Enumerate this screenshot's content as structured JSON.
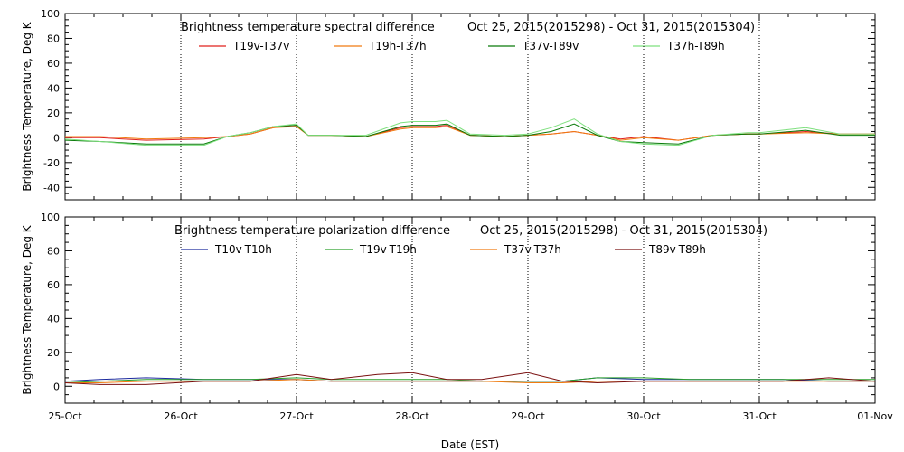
{
  "chart_data": [
    {
      "type": "line",
      "title_left": "Brightness temperature spectral difference",
      "title_right": "Oct 25, 2015(2015298) - Oct 31, 2015(2015304)",
      "ylabel": "Brightness Temperature, Deg K",
      "ylim": [
        -50,
        100
      ],
      "yticks": [
        "-40",
        "-20",
        "0",
        "20",
        "40",
        "60",
        "80",
        "100"
      ],
      "grid": "vertical dotted at day boundaries",
      "legend": "top",
      "series": [
        {
          "name": "T19v-T37v",
          "color": "#e0201c",
          "x": [
            0,
            0.3,
            0.7,
            1.2,
            1.4,
            1.6,
            1.8,
            2.0,
            2.1,
            2.3,
            2.6,
            2.9,
            3.0,
            3.2,
            3.3,
            3.5,
            3.8,
            4.0,
            4.2,
            4.4,
            4.6,
            4.8,
            5.0,
            5.3,
            5.6,
            5.9,
            6.0,
            6.4,
            6.7,
            7.0
          ],
          "y": [
            0,
            0,
            -2,
            -1,
            1,
            3,
            8,
            10,
            2,
            2,
            1,
            8,
            9,
            9,
            10,
            2,
            1,
            2,
            3,
            5,
            2,
            -1,
            1,
            -2,
            2,
            3,
            3,
            5,
            3,
            3
          ]
        },
        {
          "name": "T19h-T37h",
          "color": "#f07b10",
          "x": [
            0,
            0.3,
            0.7,
            1.2,
            1.4,
            1.6,
            1.8,
            2.0,
            2.1,
            2.3,
            2.6,
            2.9,
            3.0,
            3.2,
            3.3,
            3.5,
            3.8,
            4.0,
            4.2,
            4.4,
            4.6,
            4.8,
            5.0,
            5.3,
            5.6,
            5.9,
            6.0,
            6.4,
            6.7,
            7.0
          ],
          "y": [
            1,
            1,
            -1,
            0,
            1,
            3,
            8,
            9,
            2,
            2,
            1,
            7,
            8,
            8,
            9,
            2,
            1,
            2,
            3,
            5,
            2,
            -2,
            0,
            -2,
            2,
            3,
            3,
            4,
            3,
            3
          ]
        },
        {
          "name": "T37v-T89v",
          "color": "#0a7a0a",
          "x": [
            0,
            0.3,
            0.7,
            1.2,
            1.4,
            1.6,
            1.8,
            2.0,
            2.1,
            2.3,
            2.6,
            2.9,
            3.0,
            3.2,
            3.3,
            3.5,
            3.8,
            4.0,
            4.2,
            4.4,
            4.6,
            4.8,
            5.0,
            5.3,
            5.6,
            5.9,
            6.0,
            6.4,
            6.7,
            7.0
          ],
          "y": [
            -2,
            -3,
            -5,
            -5,
            1,
            4,
            9,
            10,
            2,
            2,
            1,
            9,
            10,
            10,
            11,
            2,
            1,
            2,
            5,
            11,
            2,
            -3,
            -4,
            -5,
            2,
            3,
            3,
            6,
            2,
            2
          ]
        },
        {
          "name": "T37h-T89h",
          "color": "#7ee07e",
          "x": [
            0,
            0.3,
            0.7,
            1.2,
            1.4,
            1.6,
            1.8,
            2.0,
            2.1,
            2.3,
            2.6,
            2.9,
            3.0,
            3.2,
            3.3,
            3.5,
            3.8,
            4.0,
            4.2,
            4.4,
            4.6,
            4.8,
            5.0,
            5.3,
            5.6,
            5.9,
            6.0,
            6.4,
            6.7,
            7.0
          ],
          "y": [
            -1,
            -3,
            -6,
            -6,
            1,
            4,
            9,
            11,
            2,
            2,
            2,
            12,
            13,
            13,
            14,
            3,
            2,
            3,
            8,
            15,
            3,
            -3,
            -5,
            -6,
            2,
            4,
            4,
            8,
            3,
            3
          ]
        }
      ]
    },
    {
      "type": "line",
      "title_left": "Brightness temperature polarization difference",
      "title_right": "Oct 25, 2015(2015298) - Oct 31, 2015(2015304)",
      "ylabel": "Brightness Temperature, Deg K",
      "xlabel": "Date (EST)",
      "ylim": [
        -10,
        100
      ],
      "yticks": [
        "0",
        "20",
        "40",
        "60",
        "80",
        "100"
      ],
      "xticks": [
        "25-Oct",
        "26-Oct",
        "27-Oct",
        "28-Oct",
        "29-Oct",
        "30-Oct",
        "31-Oct",
        "01-Nov"
      ],
      "grid": "vertical dotted at day boundaries",
      "legend": "top",
      "series": [
        {
          "name": "T10v-T10h",
          "color": "#1c2a9e",
          "x": [
            0,
            0.3,
            0.7,
            1.2,
            1.6,
            2.0,
            2.3,
            2.7,
            3.0,
            3.3,
            3.6,
            4.0,
            4.3,
            4.6,
            5.0,
            5.4,
            5.8,
            6.2,
            6.6,
            7.0
          ],
          "y": [
            3,
            4,
            5,
            4,
            4,
            4,
            3,
            3,
            3,
            3,
            3,
            3,
            3,
            5,
            4,
            4,
            4,
            4,
            3,
            3
          ]
        },
        {
          "name": "T19v-T19h",
          "color": "#2aa02a",
          "x": [
            0,
            0.3,
            0.7,
            1.2,
            1.6,
            2.0,
            2.3,
            2.7,
            3.0,
            3.3,
            3.6,
            4.0,
            4.3,
            4.6,
            5.0,
            5.4,
            5.8,
            6.2,
            6.6,
            7.0
          ],
          "y": [
            2,
            3,
            4,
            4,
            4,
            5,
            4,
            4,
            4,
            4,
            3,
            3,
            3,
            5,
            5,
            4,
            4,
            4,
            4,
            4
          ]
        },
        {
          "name": "T37v-T37h",
          "color": "#f07b10",
          "x": [
            0,
            0.3,
            0.7,
            1.2,
            1.6,
            2.0,
            2.3,
            2.7,
            3.0,
            3.3,
            3.6,
            4.0,
            4.3,
            4.6,
            5.0,
            5.4,
            5.8,
            6.2,
            6.6,
            7.0
          ],
          "y": [
            2,
            2,
            3,
            3,
            3,
            4,
            3,
            3,
            3,
            3,
            3,
            2,
            2,
            3,
            3,
            3,
            3,
            3,
            3,
            3
          ]
        },
        {
          "name": "T89v-T89h",
          "color": "#7a1010",
          "x": [
            0,
            0.3,
            0.7,
            1.2,
            1.6,
            2.0,
            2.3,
            2.7,
            3.0,
            3.3,
            3.6,
            4.0,
            4.3,
            4.6,
            5.0,
            5.4,
            5.8,
            6.2,
            6.6,
            7.0
          ],
          "y": [
            2,
            1,
            1,
            3,
            3,
            7,
            4,
            7,
            8,
            4,
            4,
            8,
            3,
            2,
            3,
            3,
            3,
            3,
            5,
            3
          ]
        }
      ]
    }
  ]
}
